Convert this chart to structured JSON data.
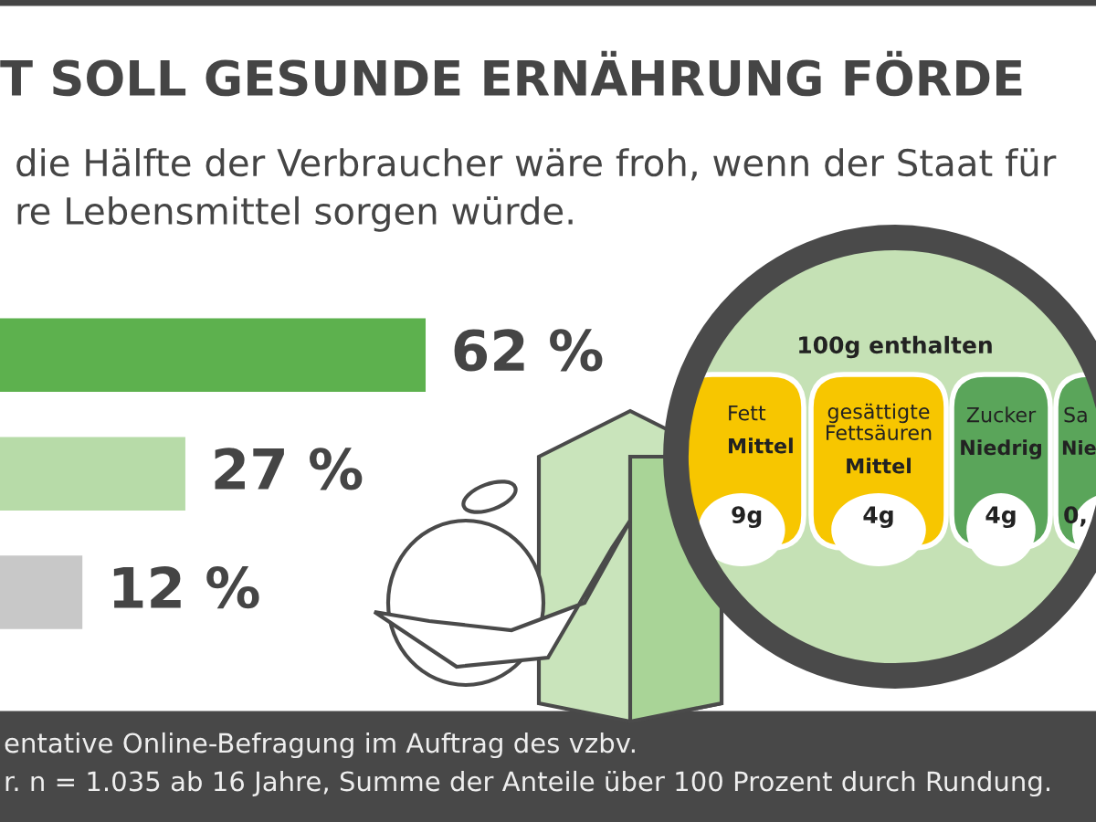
{
  "chart_data": {
    "type": "bar",
    "orientation": "horizontal",
    "title": "T SOLL GESUNDE ERNÄHRUNG FÖRDE",
    "subtitle": "die Hälfte der Verbraucher wäre froh, wenn der Staat für\nre Lebensmittel sorgen würde.",
    "categories": [
      null,
      null,
      null
    ],
    "values": [
      62,
      27,
      12
    ],
    "colors": [
      "#5db14e",
      "#b7dba8",
      "#c8c8c8"
    ],
    "value_labels": [
      "62 %",
      "27 %",
      "12 %"
    ],
    "annotations": [
      "entative Online-Befragung im Auftrag des vzbv.",
      "r. n = 1.035 ab 16 Jahre, Summe der Anteile über 100 Prozent durch Rundung.",
      "100g enthalten",
      "Fett",
      "Mittel",
      "gesättigte\nFettsäuren",
      "Mittel",
      "Zucker",
      "Niedrig",
      "Sa",
      "Nie",
      "9g",
      "4g",
      "4g",
      "0,"
    ]
  }
}
